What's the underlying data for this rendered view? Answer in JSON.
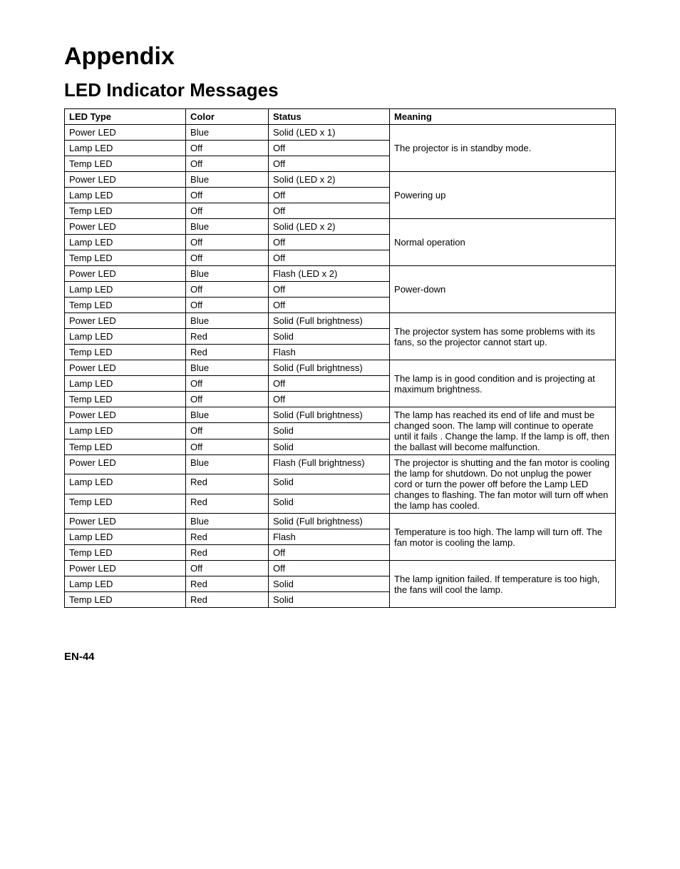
{
  "heading": "Appendix",
  "subheading": "LED Indicator Messages",
  "columns": [
    "LED Type",
    "Color",
    "Status",
    "Meaning"
  ],
  "groups": [
    {
      "rows": [
        {
          "led": "Power  LED",
          "color": "Blue",
          "status": "Solid (LED x 1)"
        },
        {
          "led": "Lamp LED",
          "color": "Off",
          "status": "Off"
        },
        {
          "led": "Temp LED",
          "color": "Off",
          "status": "Off"
        }
      ],
      "meaning": "The projector is  in standby mode."
    },
    {
      "rows": [
        {
          "led": "Power  LED",
          "color": "Blue",
          "status": "Solid (LED x 2)"
        },
        {
          "led": "Lamp LED",
          "color": "Off",
          "status": "Off"
        },
        {
          "led": "Temp LED",
          "color": "Off",
          "status": "Off"
        }
      ],
      "meaning": "Powering up"
    },
    {
      "rows": [
        {
          "led": "Power  LED",
          "color": "Blue",
          "status": "Solid (LED x 2)"
        },
        {
          "led": "Lamp LED",
          "color": "Off",
          "status": "Off"
        },
        {
          "led": "Temp LED",
          "color": "Off",
          "status": "Off"
        }
      ],
      "meaning": "Normal operation"
    },
    {
      "rows": [
        {
          "led": "Power  LED",
          "color": "Blue",
          "status": "Flash (LED x 2)"
        },
        {
          "led": "Lamp LED",
          "color": "Off",
          "status": "Off"
        },
        {
          "led": "Temp LED",
          "color": "Off",
          "status": "Off"
        }
      ],
      "meaning": "Power-down"
    },
    {
      "rows": [
        {
          "led": "Power  LED",
          "color": "Blue",
          "status": "Solid (Full brightness)"
        },
        {
          "led": "Lamp LED",
          "color": "Red",
          "status": "Solid"
        },
        {
          "led": "Temp LED",
          "color": "Red",
          "status": "Flash"
        }
      ],
      "meaning": "The projector system has some problems with its fans, so the projector cannot start up."
    },
    {
      "rows": [
        {
          "led": "Power  LED",
          "color": "Blue",
          "status": "Solid (Full brightness)"
        },
        {
          "led": "Lamp LED",
          "color": "Off",
          "status": "Off"
        },
        {
          "led": "Temp LED",
          "color": "Off",
          "status": "Off"
        }
      ],
      "meaning": "The lamp is in good condition and is projecting at maximum brightness."
    },
    {
      "rows": [
        {
          "led": "Power  LED",
          "color": "Blue",
          "status": "Solid (Full brightness)"
        },
        {
          "led": "Lamp LED",
          "color": "Off",
          "status": "Solid"
        },
        {
          "led": "Temp LED",
          "color": "Off",
          "status": "Solid"
        }
      ],
      "meaning": "The lamp has reached its end of life and must be changed soon. The lamp will continue to operate until it fails . Change the lamp. If the lamp is off, then the ballast will become malfunction."
    },
    {
      "rows": [
        {
          "led": "Power  LED",
          "color": "Blue",
          "status": "Flash  (Full brightness)"
        },
        {
          "led": "Lamp LED",
          "color": "Red",
          "status": "Solid"
        },
        {
          "led": "Temp LED",
          "color": "Red",
          "status": "Solid"
        }
      ],
      "meaning": "The projector is shutting and the fan motor is cooling the lamp for shutdown. Do not unplug the power cord or turn the power off before the Lamp LED changes to flashing. The fan motor will turn off when the lamp has cooled."
    },
    {
      "rows": [
        {
          "led": "Power  LED",
          "color": "Blue",
          "status": "Solid (Full brightness)"
        },
        {
          "led": "Lamp LED",
          "color": "Red",
          "status": "Flash"
        },
        {
          "led": "Temp LED",
          "color": "Red",
          "status": "Off"
        }
      ],
      "meaning": "Temperature is too high. The lamp will turn off. The fan motor is cooling the lamp."
    },
    {
      "rows": [
        {
          "led": "Power  LED",
          "color": "Off",
          "status": "Off"
        },
        {
          "led": "Lamp LED",
          "color": "Red",
          "status": "Solid"
        },
        {
          "led": "Temp LED",
          "color": "Red",
          "status": "Solid"
        }
      ],
      "meaning": "The lamp ignition failed. If temperature is too high, the fans will cool the lamp."
    }
  ],
  "pageNumber": "EN-44"
}
